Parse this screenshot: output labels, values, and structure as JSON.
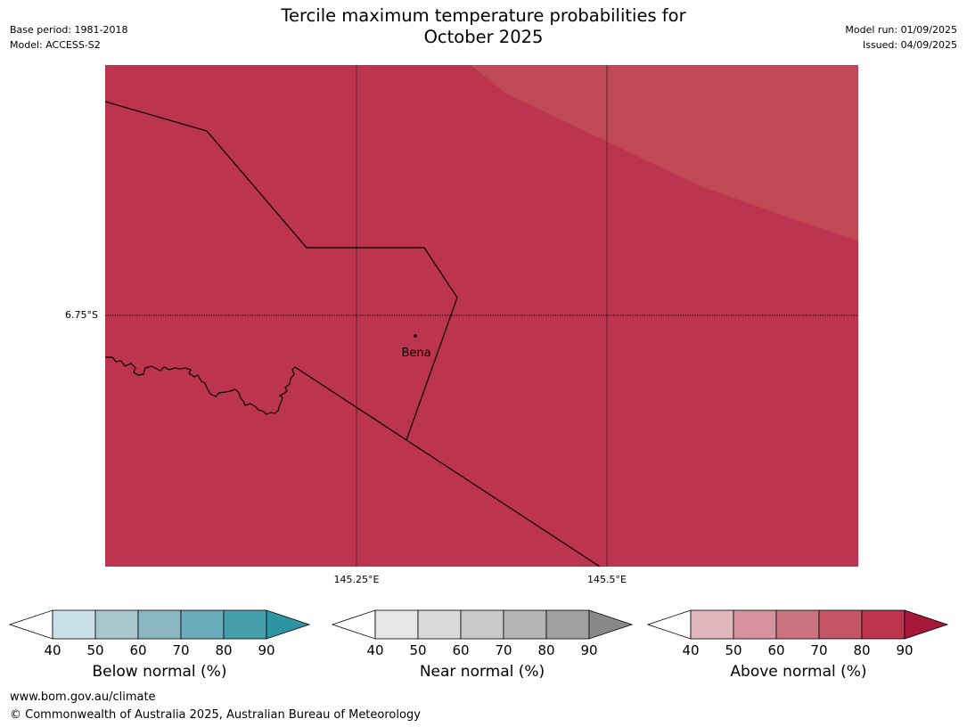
{
  "header": {
    "title_line1": "Tercile maximum temperature probabilities for",
    "title_line2": "October 2025",
    "base_period": "Base period: 1981-2018",
    "model": "Model: ACCESS-S2",
    "model_run": "Model run: 01/09/2025",
    "issued": "Issued: 04/09/2025"
  },
  "map": {
    "place_label": "Bena",
    "lat_label": "6.75°S",
    "lon_labels": [
      "145.25°E",
      "145.5°E"
    ],
    "colors": {
      "main_fill": "#bc344d",
      "lighter_fill": "#c04956"
    }
  },
  "legends": [
    {
      "title": "Below normal (%)",
      "ticks": [
        "40",
        "50",
        "60",
        "70",
        "80",
        "90"
      ],
      "colors": [
        "#ffffff",
        "#c9e1e6",
        "#a8c6cb",
        "#89b6c1",
        "#6aacbb",
        "#469fac",
        "#2e93a3"
      ]
    },
    {
      "title": "Near normal (%)",
      "ticks": [
        "40",
        "50",
        "60",
        "70",
        "80",
        "90"
      ],
      "colors": [
        "#ffffff",
        "#e6e6e6",
        "#d9d9d9",
        "#c9c9c9",
        "#b4b4b4",
        "#a0a0a0",
        "#888888"
      ]
    },
    {
      "title": "Above normal (%)",
      "ticks": [
        "40",
        "50",
        "60",
        "70",
        "80",
        "90"
      ],
      "colors": [
        "#ffffff",
        "#e1b6bd",
        "#d6939d",
        "#cb747f",
        "#c35566",
        "#bc344d",
        "#a5183a"
      ]
    }
  ],
  "footer": {
    "url": "www.bom.gov.au/climate",
    "copyright": "© Commonwealth of Australia 2025, Australian Bureau of Meteorology"
  }
}
